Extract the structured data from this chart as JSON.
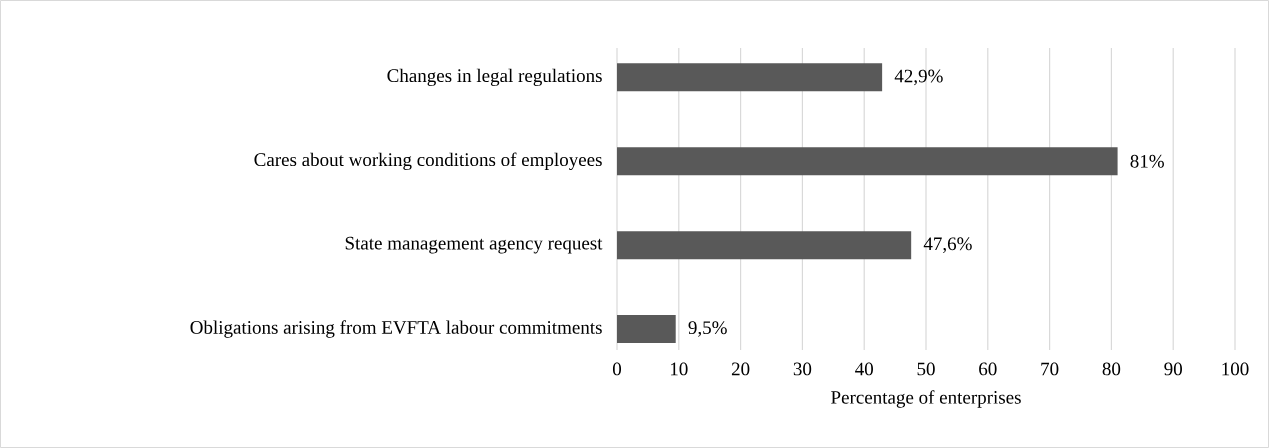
{
  "chart_data": {
    "type": "bar",
    "orientation": "horizontal",
    "categories": [
      "Changes in legal regulations",
      "Cares about working conditions of employees",
      "State management agency request",
      "Obligations arising from EVFTA labour commitments"
    ],
    "values": [
      42.9,
      81,
      47.6,
      9.5
    ],
    "value_labels": [
      "42,9%",
      "81%",
      "47,6%",
      "9,5%"
    ],
    "color": "#595959",
    "xlim": [
      0,
      100
    ],
    "xticks": [
      0,
      10,
      20,
      30,
      40,
      50,
      60,
      70,
      80,
      90,
      100
    ],
    "xlabel": "Percentage of enterprises",
    "grid": "x"
  }
}
